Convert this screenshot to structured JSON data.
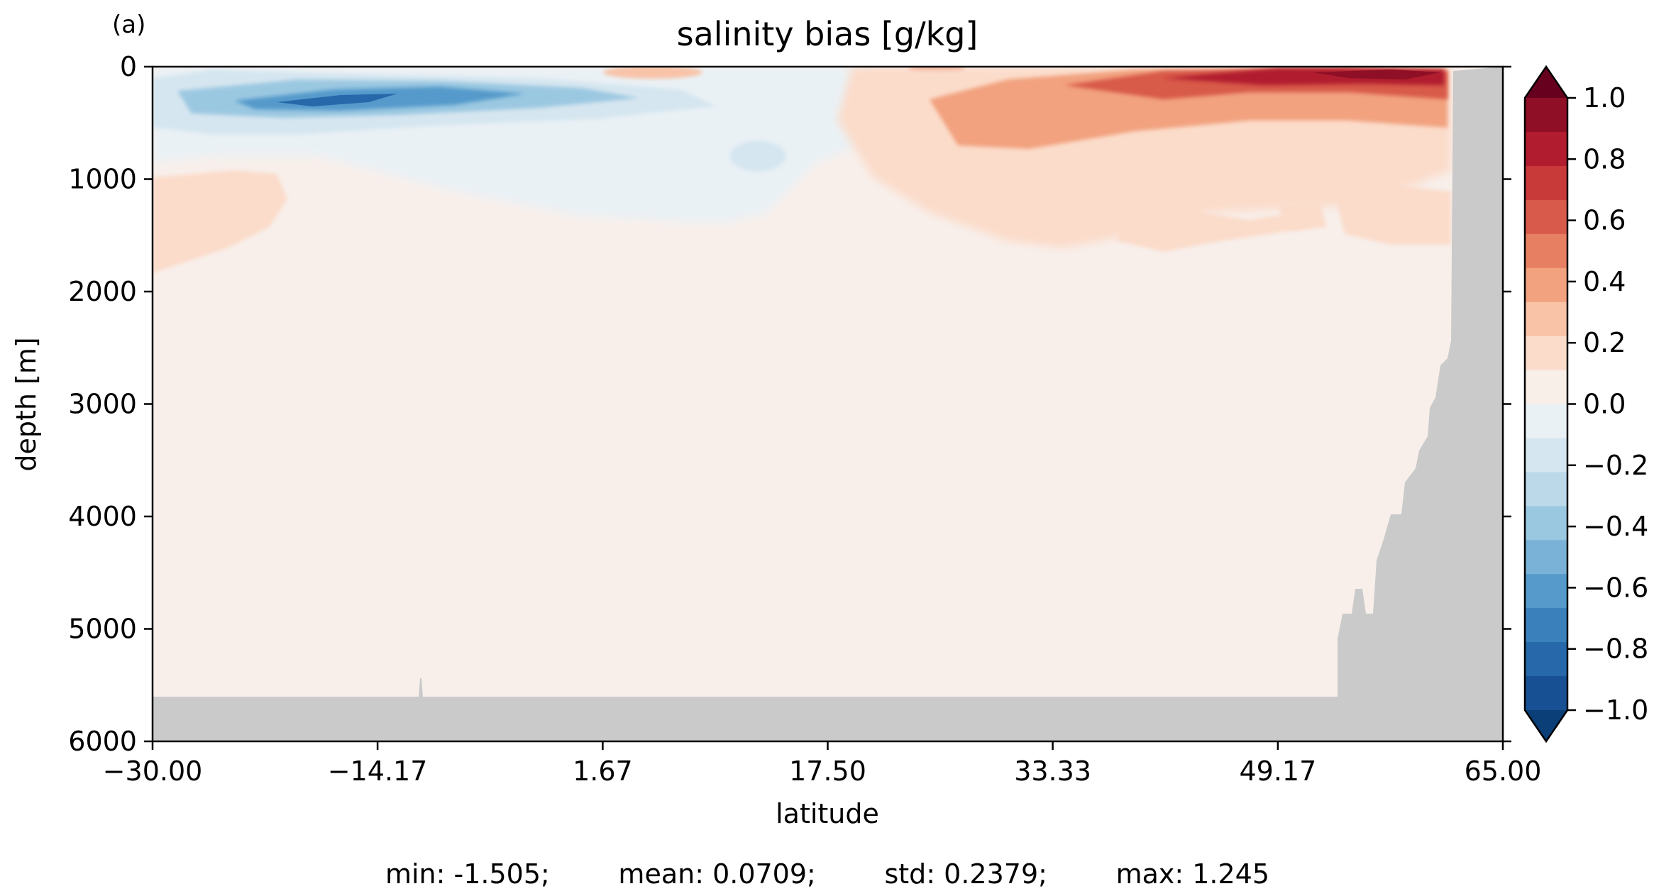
{
  "panel_label": "(a)",
  "stats_line": "min: -1.505;        mean: 0.0709;        std: 0.2379;        max: 1.245",
  "chart_data": {
    "type": "heatmap",
    "title": "salinity bias [g/kg]",
    "xlabel": "latitude",
    "ylabel": "depth [m]",
    "xlim": [
      -30.0,
      65.0
    ],
    "ylim": [
      6000,
      0
    ],
    "y_inverted": true,
    "x_ticks": [
      -30.0,
      -14.17,
      1.67,
      17.5,
      33.33,
      49.17,
      65.0
    ],
    "x_tick_labels": [
      "−30.00",
      "−14.17",
      "1.67",
      "17.50",
      "33.33",
      "49.17",
      "65.00"
    ],
    "y_ticks": [
      0,
      1000,
      2000,
      3000,
      4000,
      5000,
      6000
    ],
    "y_tick_labels": [
      "0",
      "1000",
      "2000",
      "3000",
      "4000",
      "5000",
      "6000"
    ],
    "colorbar": {
      "ticks": [
        1.0,
        0.8,
        0.6,
        0.4,
        0.2,
        0.0,
        -0.2,
        -0.4,
        -0.6,
        -0.8,
        -1.0
      ],
      "tick_labels": [
        "1.0",
        "0.8",
        "0.6",
        "0.4",
        "0.2",
        "0.0",
        "−0.2",
        "−0.4",
        "−0.6",
        "−0.8",
        "−1.0"
      ],
      "vmin": -1.0,
      "vmax": 1.0,
      "extend": "both",
      "levels_top_to_bottom": [
        "#8e0f26",
        "#b11c2e",
        "#c8393a",
        "#d85a4a",
        "#e78063",
        "#f2a27f",
        "#f8c3a7",
        "#fbdcca",
        "#f8efe9",
        "#eaf1f5",
        "#d6e6f0",
        "#bcd9ea",
        "#9bc8e1",
        "#79b2d6",
        "#559acb",
        "#3a81bc",
        "#2668aa",
        "#175193"
      ],
      "over_color": "#67001f",
      "under_color": "#0b3f78"
    },
    "land_mask_color": "#cacaca",
    "background_bias_color": "#f8efeb",
    "summary_stats": {
      "min": -1.505,
      "mean": 0.0709,
      "std": 0.2379,
      "max": 1.245
    }
  }
}
